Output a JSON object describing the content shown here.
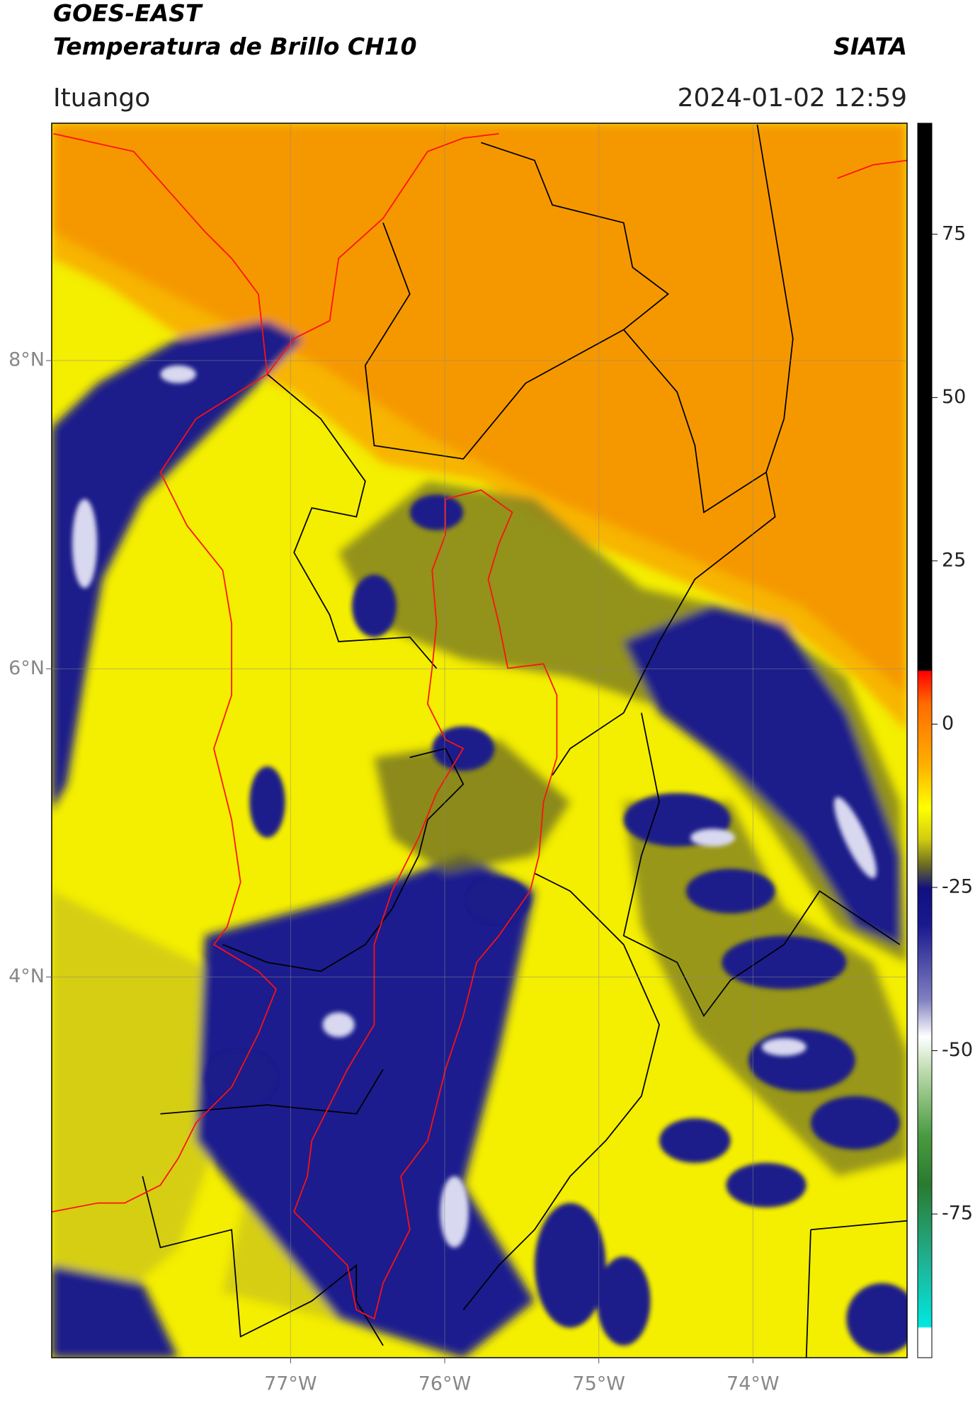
{
  "header": {
    "title": "GOES-EAST",
    "subtitle": "Temperatura de Brillo CH10",
    "brand": "SIATA",
    "location": "Ituango",
    "datetime": "2024-01-02 12:59"
  },
  "chart_data": {
    "type": "map",
    "xlim": [
      -78.55,
      -73.0
    ],
    "ylim": [
      1.53,
      9.54
    ],
    "xticks": [
      {
        "value": -77,
        "label": "77°W"
      },
      {
        "value": -76,
        "label": "76°W"
      },
      {
        "value": -75,
        "label": "75°W"
      },
      {
        "value": -74,
        "label": "74°W"
      }
    ],
    "yticks": [
      {
        "value": 8,
        "label": "8°N"
      },
      {
        "value": 6,
        "label": "6°N"
      },
      {
        "value": 4,
        "label": "4°N"
      }
    ],
    "grid": true,
    "colorbar": {
      "lim": [
        -97,
        92
      ],
      "ticks": [
        75,
        50,
        25,
        0,
        -25,
        -50,
        -75
      ]
    }
  }
}
